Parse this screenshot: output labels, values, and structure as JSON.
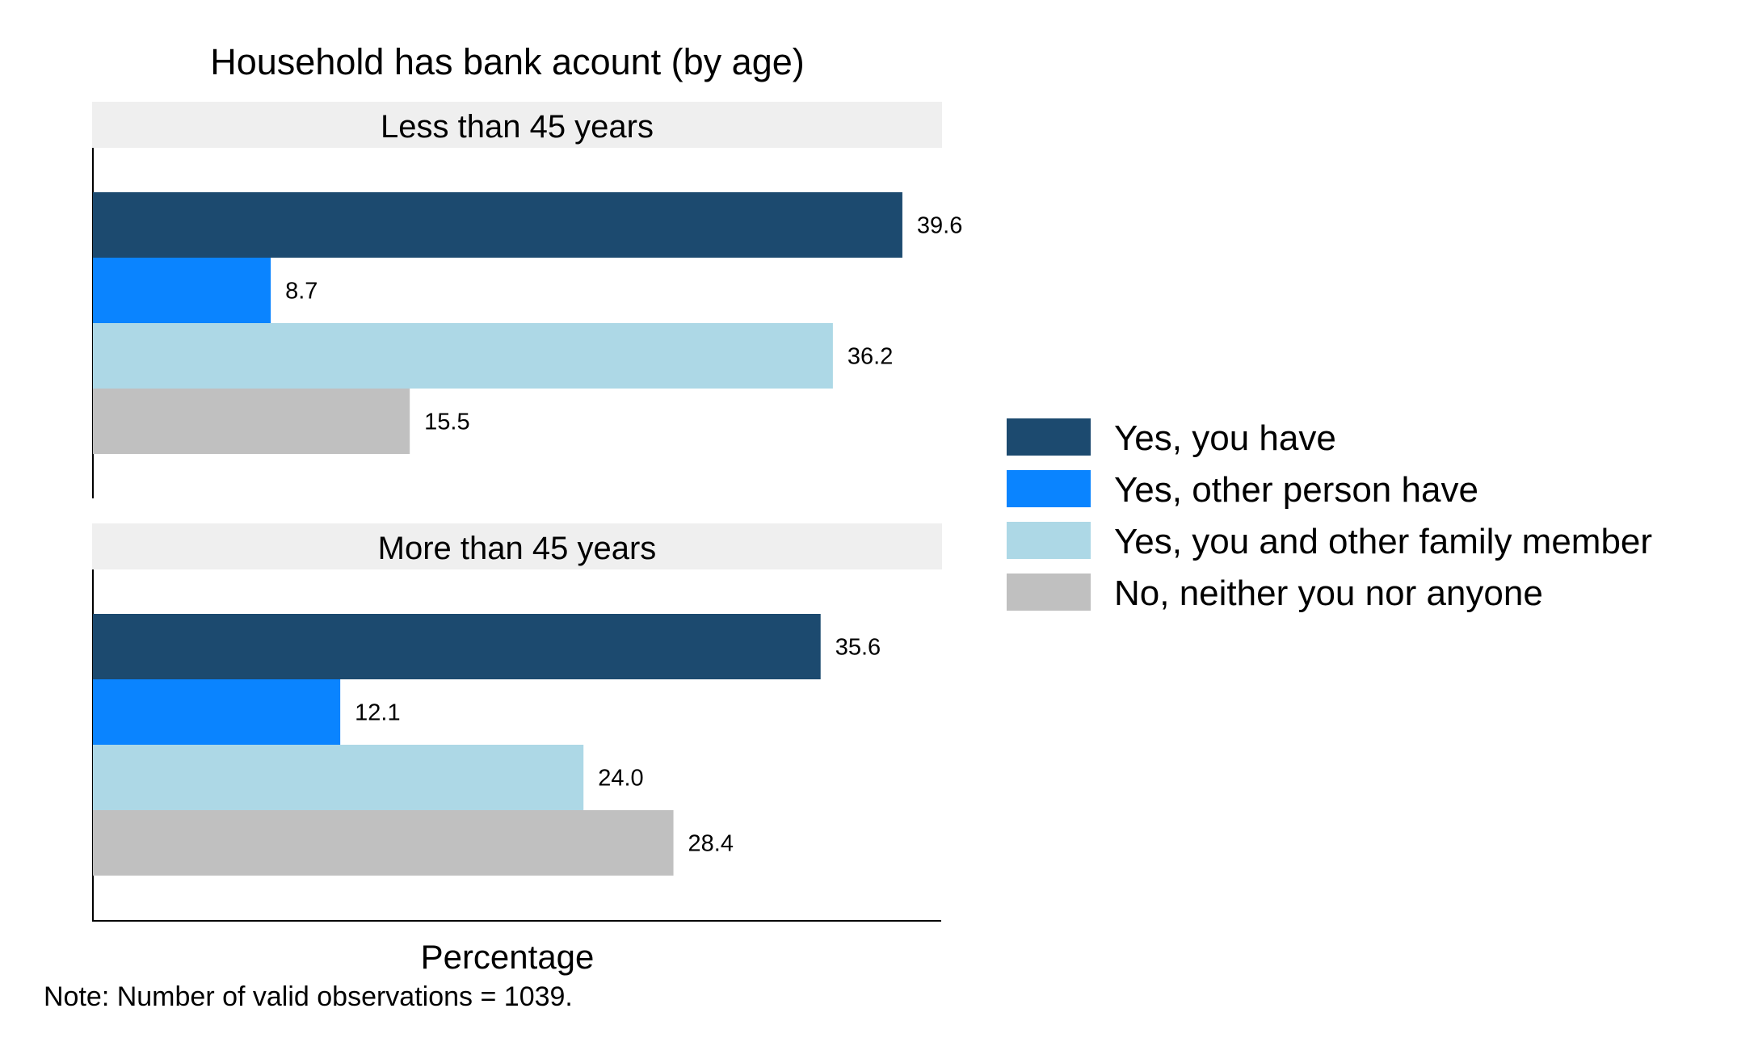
{
  "chart_data": {
    "type": "bar",
    "orientation": "horizontal",
    "title": "Household has bank acount (by age)",
    "xlabel": "Percentage",
    "ylabel": "",
    "note": "Note: Number of valid observations = 1039.",
    "xlim": [
      0,
      41.5
    ],
    "grid": false,
    "legend_position": "right",
    "panels": [
      {
        "label": "Less than 45 years",
        "values": [
          39.6,
          8.7,
          36.2,
          15.5
        ],
        "value_labels": [
          "39.6",
          "8.7",
          "36.2",
          "15.5"
        ]
      },
      {
        "label": "More than 45 years",
        "values": [
          35.6,
          12.1,
          24.0,
          28.4
        ],
        "value_labels": [
          "35.6",
          "12.1",
          "24.0",
          "28.4"
        ]
      }
    ],
    "series": [
      {
        "name": "Yes, you have",
        "color": "#1c4a6f"
      },
      {
        "name": "Yes, other person have",
        "color": "#0a84ff"
      },
      {
        "name": "Yes, you and other family member",
        "color": "#add8e6"
      },
      {
        "name": "No, neither you nor anyone",
        "color": "#c0c0c0"
      }
    ],
    "strip_color": "#efefef"
  }
}
